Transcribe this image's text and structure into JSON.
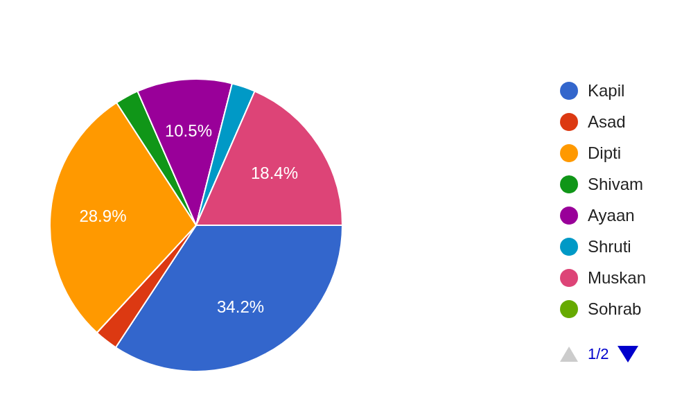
{
  "chart_data": {
    "type": "pie",
    "categories": [
      "Kapil",
      "Asad",
      "Dipti",
      "Shivam",
      "Ayaan",
      "Shruti",
      "Muskan",
      "Sohrab"
    ],
    "values": [
      34.2,
      2.6,
      28.9,
      2.6,
      10.5,
      2.6,
      18.4,
      0
    ],
    "colors": [
      "#3366cc",
      "#dc3912",
      "#ff9900",
      "#109618",
      "#990099",
      "#0099c6",
      "#dd4477",
      "#66aa00"
    ],
    "value_labels": [
      "34.2%",
      null,
      "28.9%",
      null,
      "10.5%",
      null,
      "18.4%",
      null
    ],
    "legend": "right",
    "annotations": [
      "1/2"
    ]
  }
}
